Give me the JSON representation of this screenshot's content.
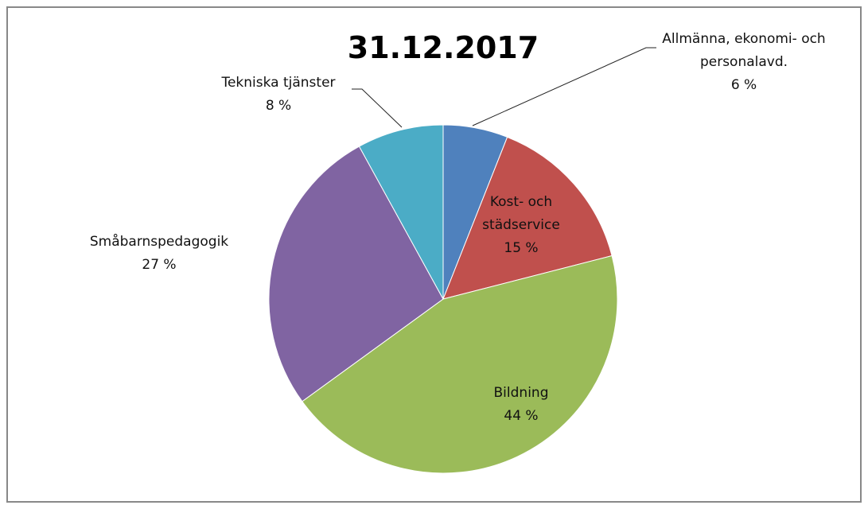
{
  "chart_data": {
    "type": "pie",
    "title": "31.12.2017",
    "categories": [
      "Allmänna, ekonomi- och personalavd.",
      "Kost- och städservice",
      "Bildning",
      "Småbarnspedagogik",
      "Tekniska tjänster"
    ],
    "values": [
      6,
      15,
      44,
      27,
      8
    ],
    "value_labels": [
      "6 %",
      "15 %",
      "44 %",
      "27 %",
      "8 %"
    ],
    "colors": [
      "#4f81bd",
      "#c0504d",
      "#9bbb59",
      "#8064a2",
      "#4bacc6"
    ]
  }
}
